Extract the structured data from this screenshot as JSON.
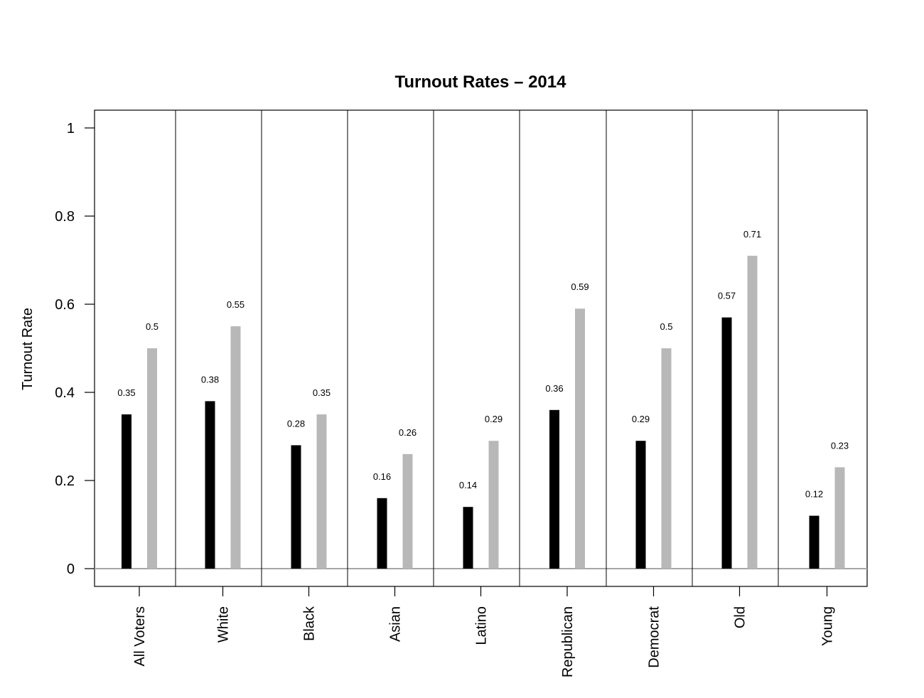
{
  "chart_data": {
    "type": "bar",
    "title": "Turnout Rates – 2014",
    "xlabel": "",
    "ylabel": "Turnout Rate",
    "ylim": [
      0,
      1
    ],
    "yticks": [
      "0",
      "0.2",
      "0.4",
      "0.6",
      "0.8",
      "1"
    ],
    "ytick_values": [
      0,
      0.2,
      0.4,
      0.6,
      0.8,
      1
    ],
    "categories": [
      "All Voters",
      "White",
      "Black",
      "Asian",
      "Latino",
      "Republican",
      "Democrat",
      "Old",
      "Young"
    ],
    "series": [
      {
        "values": [
          0.35,
          0.38,
          0.28,
          0.16,
          0.14,
          0.36,
          0.29,
          0.57,
          0.12
        ],
        "labels": [
          "0.35",
          "0.38",
          "0.28",
          "0.16",
          "0.14",
          "0.36",
          "0.29",
          "0.57",
          "0.12"
        ],
        "color": "#000000"
      },
      {
        "values": [
          0.5,
          0.55,
          0.35,
          0.26,
          0.29,
          0.59,
          0.5,
          0.71,
          0.23
        ],
        "labels": [
          "0.5",
          "0.55",
          "0.35",
          "0.26",
          "0.29",
          "0.59",
          "0.5",
          "0.71",
          "0.23"
        ],
        "color": "#b8b8b8"
      }
    ],
    "grid": false,
    "legend": "none",
    "colors": {
      "zero_line": "#a6a6a6",
      "frame": "#000000"
    }
  }
}
